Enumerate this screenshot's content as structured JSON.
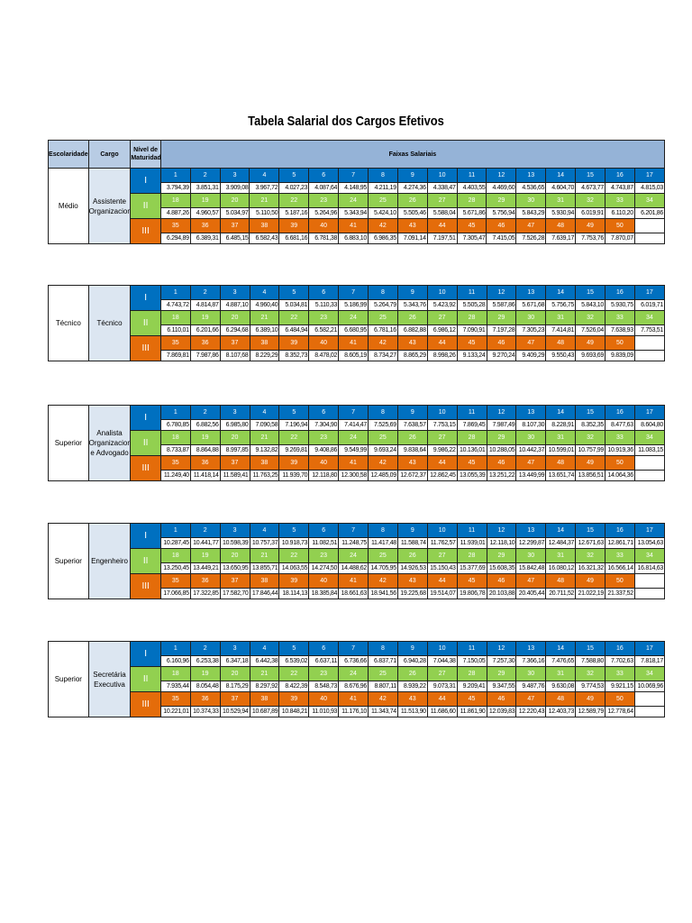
{
  "title": "Tabela Salarial dos Cargos Efetivos",
  "header": {
    "escolaridade": "Escolaridade",
    "cargo": "Cargo",
    "nivel": "Nível de Maturidade",
    "faixas": "Faixas Salariais"
  },
  "colors": {
    "blue": "#0070c0",
    "green": "#92d050",
    "orange": "#e46c0a",
    "cargo_bg": "#dce6f1"
  },
  "tables": [
    {
      "escolaridade": "Médio",
      "cargo": "Assistente Organizacional",
      "levels": [
        {
          "label": "I",
          "nums": [
            "1",
            "2",
            "3",
            "4",
            "5",
            "6",
            "7",
            "8",
            "9",
            "10",
            "11",
            "12",
            "13",
            "14",
            "15",
            "16",
            "17"
          ],
          "values": [
            "3.794,39",
            "3.851,31",
            "3.909,08",
            "3.967,72",
            "4.027,23",
            "4.087,64",
            "4.148,95",
            "4.211,19",
            "4.274,36",
            "4.338,47",
            "4.403,55",
            "4.469,60",
            "4.536,65",
            "4.604,70",
            "4.673,77",
            "4.743,87",
            "4.815,03"
          ]
        },
        {
          "label": "II",
          "nums": [
            "18",
            "19",
            "20",
            "21",
            "22",
            "23",
            "24",
            "25",
            "26",
            "27",
            "28",
            "29",
            "30",
            "31",
            "32",
            "33",
            "34"
          ],
          "values": [
            "4.887,26",
            "4.960,57",
            "5.034,97",
            "5.110,50",
            "5.187,16",
            "5.264,96",
            "5.343,94",
            "5.424,10",
            "5.505,46",
            "5.588,04",
            "5.671,86",
            "5.756,94",
            "5.843,29",
            "5.930,94",
            "6.019,91",
            "6.110,20",
            "6.201,86"
          ]
        },
        {
          "label": "III",
          "nums": [
            "35",
            "36",
            "37",
            "38",
            "39",
            "40",
            "41",
            "42",
            "43",
            "44",
            "45",
            "46",
            "47",
            "48",
            "49",
            "50",
            ""
          ],
          "values": [
            "6.294,89",
            "6.389,31",
            "6.485,15",
            "6.582,43",
            "6.681,16",
            "6.781,38",
            "6.883,10",
            "6.986,35",
            "7.091,14",
            "7.197,51",
            "7.305,47",
            "7.415,05",
            "7.526,28",
            "7.639,17",
            "7.753,76",
            "7.870,07",
            ""
          ]
        }
      ]
    },
    {
      "escolaridade": "Técnico",
      "cargo": "Técnico",
      "levels": [
        {
          "label": "I",
          "nums": [
            "1",
            "2",
            "3",
            "4",
            "5",
            "6",
            "7",
            "8",
            "9",
            "10",
            "11",
            "12",
            "13",
            "14",
            "15",
            "16",
            "17"
          ],
          "values": [
            "4.743,72",
            "4.814,87",
            "4.887,10",
            "4.960,40",
            "5.034,81",
            "5.110,33",
            "5.186,99",
            "5.264,79",
            "5.343,76",
            "5.423,92",
            "5.505,28",
            "5.587,86",
            "5.671,68",
            "5.756,75",
            "5.843,10",
            "5.930,75",
            "6.019,71"
          ]
        },
        {
          "label": "II",
          "nums": [
            "18",
            "19",
            "20",
            "21",
            "22",
            "23",
            "24",
            "25",
            "26",
            "27",
            "28",
            "29",
            "30",
            "31",
            "32",
            "33",
            "34"
          ],
          "values": [
            "6.110,01",
            "6.201,66",
            "6.294,68",
            "6.389,10",
            "6.484,94",
            "6.582,21",
            "6.680,95",
            "6.781,16",
            "6.882,88",
            "6.986,12",
            "7.090,91",
            "7.197,28",
            "7.305,23",
            "7.414,81",
            "7.526,04",
            "7.638,93",
            "7.753,51"
          ]
        },
        {
          "label": "III",
          "nums": [
            "35",
            "36",
            "37",
            "38",
            "39",
            "40",
            "41",
            "42",
            "43",
            "44",
            "45",
            "46",
            "47",
            "48",
            "49",
            "50",
            ""
          ],
          "values": [
            "7.869,81",
            "7.987,86",
            "8.107,68",
            "8.229,29",
            "8.352,73",
            "8.478,02",
            "8.605,19",
            "8.734,27",
            "8.865,29",
            "8.998,26",
            "9.133,24",
            "9.270,24",
            "9.409,29",
            "9.550,43",
            "9.693,69",
            "9.839,09",
            ""
          ]
        }
      ]
    },
    {
      "escolaridade": "Superior",
      "cargo": "Analista Organizacional e Advogado",
      "levels": [
        {
          "label": "I",
          "nums": [
            "1",
            "2",
            "3",
            "4",
            "5",
            "6",
            "7",
            "8",
            "9",
            "10",
            "11",
            "12",
            "13",
            "14",
            "15",
            "16",
            "17"
          ],
          "values": [
            "6.780,85",
            "6.882,56",
            "6.985,80",
            "7.090,58",
            "7.196,94",
            "7.304,90",
            "7.414,47",
            "7.525,69",
            "7.638,57",
            "7.753,15",
            "7.869,45",
            "7.987,49",
            "8.107,30",
            "8.228,91",
            "8.352,35",
            "8.477,63",
            "8.604,80"
          ]
        },
        {
          "label": "II",
          "nums": [
            "18",
            "19",
            "20",
            "21",
            "22",
            "23",
            "24",
            "25",
            "26",
            "27",
            "28",
            "29",
            "30",
            "31",
            "32",
            "33",
            "34"
          ],
          "values": [
            "8.733,87",
            "8.864,88",
            "8.997,85",
            "9.132,82",
            "9.269,81",
            "9.408,86",
            "9.549,99",
            "9.693,24",
            "9.838,64",
            "9.986,22",
            "10.136,01",
            "10.288,05",
            "10.442,37",
            "10.599,01",
            "10.757,99",
            "10.919,36",
            "11.083,15"
          ]
        },
        {
          "label": "III",
          "nums": [
            "35",
            "36",
            "37",
            "38",
            "39",
            "40",
            "41",
            "42",
            "43",
            "44",
            "45",
            "46",
            "47",
            "48",
            "49",
            "50",
            ""
          ],
          "values": [
            "11.249,40",
            "11.418,14",
            "11.589,41",
            "11.763,25",
            "11.939,70",
            "12.118,80",
            "12.300,58",
            "12.485,09",
            "12.672,37",
            "12.862,45",
            "13.055,39",
            "13.251,22",
            "13.449,99",
            "13.651,74",
            "13.856,51",
            "14.064,36",
            ""
          ]
        }
      ]
    },
    {
      "escolaridade": "Superior",
      "cargo": "Engenheiro",
      "levels": [
        {
          "label": "I",
          "nums": [
            "1",
            "2",
            "3",
            "4",
            "5",
            "6",
            "7",
            "8",
            "9",
            "10",
            "11",
            "12",
            "13",
            "14",
            "15",
            "16",
            "17"
          ],
          "values": [
            "10.287,45",
            "10.441,77",
            "10.598,39",
            "10.757,37",
            "10.918,73",
            "11.082,51",
            "11.248,75",
            "11.417,48",
            "11.588,74",
            "11.762,57",
            "11.939,01",
            "12.118,10",
            "12.299,87",
            "12.484,37",
            "12.671,63",
            "12.861,71",
            "13.054,63"
          ]
        },
        {
          "label": "II",
          "nums": [
            "18",
            "19",
            "20",
            "21",
            "22",
            "23",
            "24",
            "25",
            "26",
            "27",
            "28",
            "29",
            "30",
            "31",
            "32",
            "33",
            "34"
          ],
          "values": [
            "13.250,45",
            "13.449,21",
            "13.650,95",
            "13.855,71",
            "14.063,55",
            "14.274,50",
            "14.488,62",
            "14.705,95",
            "14.926,53",
            "15.150,43",
            "15.377,69",
            "15.608,35",
            "15.842,48",
            "16.080,12",
            "16.321,32",
            "16.566,14",
            "16.814,63"
          ]
        },
        {
          "label": "III",
          "nums": [
            "35",
            "36",
            "37",
            "38",
            "39",
            "40",
            "41",
            "42",
            "43",
            "44",
            "45",
            "46",
            "47",
            "48",
            "49",
            "50",
            ""
          ],
          "values": [
            "17.066,85",
            "17.322,85",
            "17.582,70",
            "17.846,44",
            "18.114,13",
            "18.385,84",
            "18.661,63",
            "18.941,56",
            "19.225,68",
            "19.514,07",
            "19.806,78",
            "20.103,88",
            "20.405,44",
            "20.711,52",
            "21.022,19",
            "21.337,52",
            ""
          ]
        }
      ]
    },
    {
      "escolaridade": "Superior",
      "cargo": "Secretária Executiva",
      "levels": [
        {
          "label": "I",
          "nums": [
            "1",
            "2",
            "3",
            "4",
            "5",
            "6",
            "7",
            "8",
            "9",
            "10",
            "11",
            "12",
            "13",
            "14",
            "15",
            "16",
            "17"
          ],
          "values": [
            "6.160,96",
            "6.253,38",
            "6.347,18",
            "6.442,38",
            "6.539,02",
            "6.637,11",
            "6.736,66",
            "6.837,71",
            "6.940,28",
            "7.044,38",
            "7.150,05",
            "7.257,30",
            "7.366,16",
            "7.476,65",
            "7.588,80",
            "7.702,63",
            "7.818,17"
          ]
        },
        {
          "label": "II",
          "nums": [
            "18",
            "19",
            "20",
            "21",
            "22",
            "23",
            "24",
            "25",
            "26",
            "27",
            "28",
            "29",
            "30",
            "31",
            "32",
            "33",
            "34"
          ],
          "values": [
            "7.935,44",
            "8.054,48",
            "8.175,29",
            "8.297,92",
            "8.422,39",
            "8.548,73",
            "8.676,96",
            "8.807,11",
            "8.939,22",
            "9.073,31",
            "9.209,41",
            "9.347,55",
            "9.487,76",
            "9.630,08",
            "9.774,53",
            "9.921,15",
            "10.069,96"
          ]
        },
        {
          "label": "III",
          "nums": [
            "35",
            "36",
            "37",
            "38",
            "39",
            "40",
            "41",
            "42",
            "43",
            "44",
            "45",
            "46",
            "47",
            "48",
            "49",
            "50",
            ""
          ],
          "values": [
            "10.221,01",
            "10.374,33",
            "10.529,94",
            "10.687,89",
            "10.848,21",
            "11.010,93",
            "11.176,10",
            "11.343,74",
            "11.513,90",
            "11.686,60",
            "11.861,90",
            "12.039,83",
            "12.220,43",
            "12.403,73",
            "12.589,79",
            "12.778,64",
            ""
          ]
        }
      ]
    }
  ]
}
